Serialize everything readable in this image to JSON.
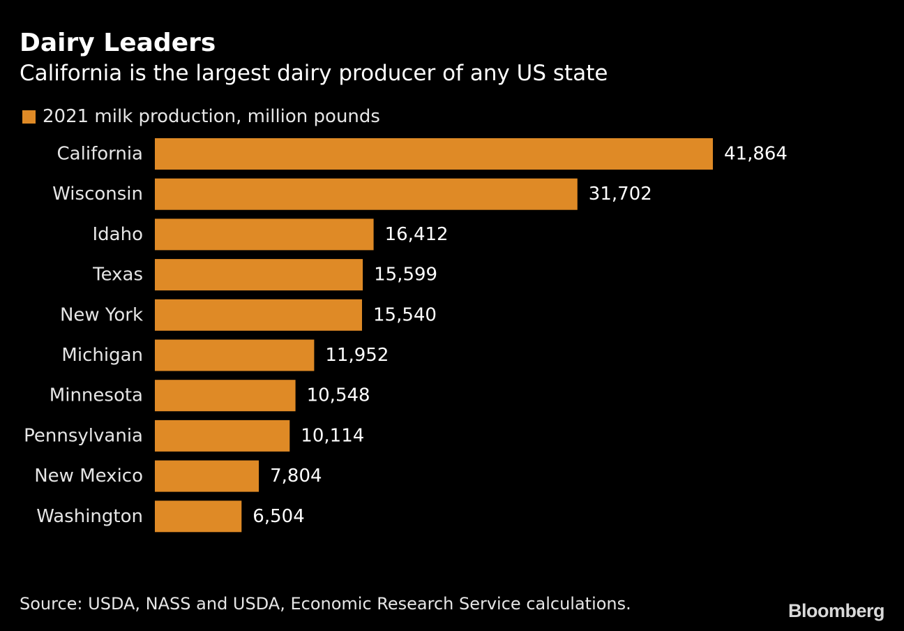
{
  "colors": {
    "background": "#000000",
    "bar": "#df8a26",
    "text": "#ffffff"
  },
  "chart_data": {
    "type": "bar",
    "orientation": "horizontal",
    "title": "Dairy Leaders",
    "subtitle": "California is the largest dairy producer of any US state",
    "categories": [
      "California",
      "Wisconsin",
      "Idaho",
      "Texas",
      "New York",
      "Michigan",
      "Minnesota",
      "Pennsylvania",
      "New Mexico",
      "Washington"
    ],
    "series": [
      {
        "name": "2021 milk production, million pounds",
        "values": [
          41864,
          31702,
          16412,
          15599,
          15540,
          11952,
          10548,
          10114,
          7804,
          6504
        ],
        "labels": [
          "41,864",
          "31,702",
          "16,412",
          "15,599",
          "15,540",
          "11,952",
          "10,548",
          "10,114",
          "7,804",
          "6,504"
        ]
      }
    ],
    "xlim": [
      0,
      41864
    ],
    "grid": false,
    "legend_position": "top-left",
    "source": "Source: USDA, NASS and USDA, Economic Research Service calculations."
  },
  "branding": {
    "logo_text": "Bloomberg"
  }
}
